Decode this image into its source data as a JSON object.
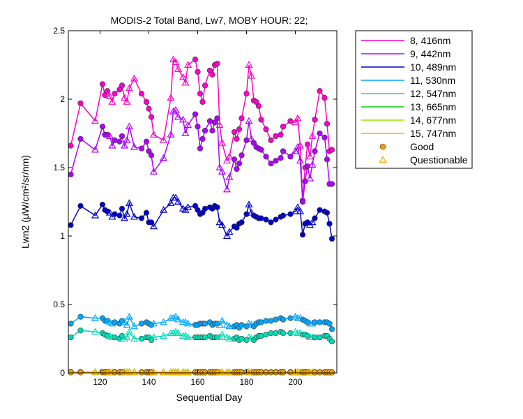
{
  "chart_data": {
    "type": "line",
    "title": "MODIS-2 Total Band, Lw7, MOBY HOUR: 22;",
    "xlabel": "Sequential Day",
    "ylabel": "Lwn2 (μW/cm²/sr/nm)",
    "xlim": [
      107,
      217
    ],
    "ylim": [
      0,
      2.5
    ],
    "xticks": [
      "120",
      "140",
      "160",
      "180",
      "200"
    ],
    "yticks": [
      "0",
      "0.5",
      "1",
      "1.5",
      "2",
      "2.5"
    ],
    "x": [
      108,
      112,
      118,
      121,
      122,
      123,
      124,
      125,
      126,
      128,
      129,
      130,
      131,
      132,
      134,
      137,
      139,
      140,
      141,
      142,
      146,
      149,
      150,
      151,
      152,
      154,
      155,
      156,
      159,
      160,
      161,
      162,
      163,
      165,
      166,
      167,
      168,
      169,
      170,
      172,
      173,
      175,
      176,
      177,
      178,
      180,
      181,
      182,
      183,
      184,
      185,
      186,
      188,
      190,
      192,
      194,
      195,
      198,
      200,
      201,
      202,
      203,
      204,
      205,
      206,
      207,
      208,
      210,
      212,
      213,
      214,
      215
    ],
    "series": [
      {
        "name": "8, 416nm",
        "color": "#ff00cc",
        "values": [
          1.66,
          1.97,
          1.84,
          2.11,
          2.03,
          2.06,
          2.02,
          1.98,
          2.04,
          2.07,
          2.1,
          2.01,
          1.98,
          2.08,
          2.15,
          2.04,
          1.98,
          1.93,
          1.87,
          1.74,
          1.7,
          2.01,
          2.29,
          2.27,
          2.22,
          2.16,
          2.12,
          2.25,
          2.29,
          2.2,
          2.04,
          1.98,
          2.1,
          2.21,
          2.18,
          2.25,
          2.26,
          1.81,
          1.68,
          1.55,
          1.58,
          1.76,
          1.71,
          1.78,
          1.86,
          2.04,
          2.25,
          2.17,
          1.99,
          1.98,
          1.95,
          1.85,
          1.78,
          1.7,
          1.73,
          1.74,
          1.8,
          1.84,
          1.83,
          1.86,
          1.66,
          1.26,
          1.5,
          1.67,
          1.58,
          1.73,
          1.85,
          2.06,
          2.01,
          1.82,
          1.62,
          1.63
        ]
      },
      {
        "name": "9, 442nm",
        "color": "#b000ff",
        "values": [
          1.45,
          1.71,
          1.63,
          1.8,
          1.74,
          1.74,
          1.73,
          1.66,
          1.7,
          1.69,
          1.73,
          1.66,
          1.7,
          1.8,
          1.65,
          1.64,
          1.69,
          1.62,
          1.59,
          1.47,
          1.57,
          1.74,
          1.91,
          1.92,
          1.87,
          1.85,
          1.75,
          1.81,
          1.89,
          1.8,
          1.64,
          1.71,
          1.77,
          1.84,
          1.77,
          1.83,
          1.86,
          1.5,
          1.47,
          1.34,
          1.43,
          1.56,
          1.49,
          1.53,
          1.59,
          1.7,
          1.84,
          1.71,
          1.68,
          1.65,
          1.64,
          1.63,
          1.58,
          1.53,
          1.55,
          1.57,
          1.62,
          1.58,
          1.62,
          1.65,
          1.55,
          1.25,
          1.4,
          1.51,
          1.42,
          1.52,
          1.62,
          1.75,
          1.72,
          1.56,
          1.38,
          1.38
        ]
      },
      {
        "name": "10, 489nm",
        "color": "#0000cc",
        "values": [
          1.08,
          1.22,
          1.15,
          1.23,
          1.19,
          1.18,
          1.17,
          1.14,
          1.16,
          1.15,
          1.2,
          1.13,
          1.16,
          1.24,
          1.14,
          1.13,
          1.17,
          1.1,
          1.1,
          1.07,
          1.19,
          1.24,
          1.28,
          1.28,
          1.25,
          1.2,
          1.19,
          1.21,
          1.22,
          1.19,
          1.16,
          1.17,
          1.2,
          1.21,
          1.2,
          1.22,
          1.21,
          1.1,
          1.08,
          1.0,
          1.03,
          1.07,
          1.06,
          1.09,
          1.1,
          1.16,
          1.23,
          1.17,
          1.15,
          1.14,
          1.13,
          1.13,
          1.12,
          1.1,
          1.12,
          1.14,
          1.15,
          1.16,
          1.18,
          1.21,
          1.18,
          1.01,
          1.09,
          1.1,
          1.08,
          1.1,
          1.13,
          1.19,
          1.18,
          1.17,
          1.09,
          0.98
        ]
      },
      {
        "name": "11, 530nm",
        "color": "#00a6ff",
        "values": [
          0.36,
          0.41,
          0.4,
          0.4,
          0.38,
          0.38,
          0.37,
          0.36,
          0.37,
          0.36,
          0.38,
          0.37,
          0.35,
          0.41,
          0.34,
          0.36,
          0.37,
          0.36,
          0.35,
          0.36,
          0.37,
          0.4,
          0.4,
          0.41,
          0.39,
          0.37,
          0.37,
          0.36,
          0.35,
          0.35,
          0.36,
          0.36,
          0.36,
          0.37,
          0.35,
          0.36,
          0.36,
          0.35,
          0.38,
          0.35,
          0.34,
          0.34,
          0.35,
          0.33,
          0.35,
          0.34,
          0.36,
          0.35,
          0.34,
          0.36,
          0.37,
          0.37,
          0.38,
          0.38,
          0.39,
          0.4,
          0.39,
          0.4,
          0.41,
          0.4,
          0.4,
          0.39,
          0.38,
          0.37,
          0.36,
          0.36,
          0.37,
          0.37,
          0.37,
          0.37,
          0.36,
          0.32
        ]
      },
      {
        "name": "12, 547nm",
        "color": "#00dcb4",
        "values": [
          0.26,
          0.31,
          0.3,
          0.29,
          0.28,
          0.27,
          0.27,
          0.26,
          0.26,
          0.25,
          0.27,
          0.25,
          0.26,
          0.3,
          0.25,
          0.25,
          0.26,
          0.26,
          0.24,
          0.26,
          0.27,
          0.29,
          0.29,
          0.3,
          0.29,
          0.27,
          0.27,
          0.26,
          0.26,
          0.26,
          0.26,
          0.26,
          0.26,
          0.27,
          0.26,
          0.26,
          0.26,
          0.26,
          0.28,
          0.26,
          0.25,
          0.25,
          0.26,
          0.24,
          0.25,
          0.24,
          0.26,
          0.25,
          0.24,
          0.26,
          0.27,
          0.27,
          0.28,
          0.29,
          0.29,
          0.3,
          0.29,
          0.29,
          0.3,
          0.29,
          0.29,
          0.28,
          0.28,
          0.27,
          0.26,
          0.26,
          0.26,
          0.26,
          0.27,
          0.27,
          0.25,
          0.23
        ]
      },
      {
        "name": "13, 665nm",
        "color": "#00cc00",
        "values": [
          0.006,
          0.006,
          0.006,
          0.005,
          0.005,
          0.005,
          0.006,
          0.005,
          0.006,
          0.005,
          0.006,
          0.005,
          0.005,
          0.007,
          0.005,
          0.005,
          0.005,
          0.005,
          0.005,
          0.005,
          0.005,
          0.006,
          0.006,
          0.006,
          0.006,
          0.005,
          0.005,
          0.005,
          0.005,
          0.005,
          0.005,
          0.005,
          0.005,
          0.005,
          0.005,
          0.005,
          0.005,
          0.005,
          0.006,
          0.005,
          0.005,
          0.005,
          0.005,
          0.005,
          0.005,
          0.005,
          0.005,
          0.005,
          0.005,
          0.005,
          0.005,
          0.005,
          0.005,
          0.005,
          0.006,
          0.006,
          0.006,
          0.006,
          0.006,
          0.006,
          0.006,
          0.005,
          0.005,
          0.005,
          0.005,
          0.005,
          0.005,
          0.005,
          0.005,
          0.005,
          0.005,
          0.005
        ]
      },
      {
        "name": "14, 677nm",
        "color": "#99e600",
        "values": [
          0.005,
          0.005,
          0.005,
          0.005,
          0.005,
          0.005,
          0.005,
          0.004,
          0.005,
          0.004,
          0.005,
          0.004,
          0.004,
          0.006,
          0.004,
          0.004,
          0.004,
          0.004,
          0.004,
          0.004,
          0.004,
          0.005,
          0.005,
          0.005,
          0.005,
          0.004,
          0.004,
          0.004,
          0.004,
          0.004,
          0.004,
          0.004,
          0.004,
          0.004,
          0.004,
          0.004,
          0.004,
          0.004,
          0.005,
          0.004,
          0.004,
          0.004,
          0.004,
          0.004,
          0.004,
          0.004,
          0.004,
          0.004,
          0.004,
          0.004,
          0.004,
          0.004,
          0.004,
          0.004,
          0.005,
          0.005,
          0.005,
          0.005,
          0.005,
          0.005,
          0.005,
          0.004,
          0.004,
          0.004,
          0.004,
          0.004,
          0.004,
          0.004,
          0.004,
          0.004,
          0.004,
          0.004
        ]
      },
      {
        "name": "15, 747nm",
        "color": "#ffaa00",
        "values": [
          0.003,
          0.003,
          0.003,
          0.003,
          0.003,
          0.003,
          0.003,
          0.003,
          0.003,
          0.003,
          0.003,
          0.003,
          0.003,
          0.004,
          0.003,
          0.003,
          0.003,
          0.003,
          0.003,
          0.003,
          0.003,
          0.003,
          0.003,
          0.003,
          0.003,
          0.003,
          0.003,
          0.003,
          0.003,
          0.003,
          0.003,
          0.003,
          0.003,
          0.003,
          0.003,
          0.003,
          0.003,
          0.003,
          0.003,
          0.003,
          0.003,
          0.003,
          0.003,
          0.003,
          0.003,
          0.003,
          0.003,
          0.003,
          0.003,
          0.003,
          0.003,
          0.003,
          0.003,
          0.003,
          0.003,
          0.003,
          0.003,
          0.003,
          0.003,
          0.003,
          0.003,
          0.003,
          0.003,
          0.003,
          0.003,
          0.003,
          0.003,
          0.003,
          0.003,
          0.003,
          0.003,
          0.003
        ]
      }
    ],
    "quality": [
      "G",
      "G",
      "Q",
      "G",
      "G",
      "G",
      "Q",
      "Q",
      "G",
      "G",
      "G",
      "Q",
      "Q",
      "Q",
      "Q",
      "G",
      "G",
      "G",
      "G",
      "Q",
      "Q",
      "Q",
      "Q",
      "Q",
      "Q",
      "Q",
      "Q",
      "Q",
      "G",
      "G",
      "G",
      "G",
      "G",
      "G",
      "G",
      "G",
      "G",
      "Q",
      "Q",
      "Q",
      "Q",
      "G",
      "G",
      "G",
      "G",
      "G",
      "Q",
      "Q",
      "G",
      "G",
      "G",
      "G",
      "G",
      "G",
      "G",
      "G",
      "G",
      "G",
      "Q",
      "Q",
      "Q",
      "G",
      "G",
      "G",
      "Q",
      "Q",
      "G",
      "G",
      "G",
      "G",
      "G",
      "G"
    ],
    "marker_legend": [
      {
        "label": "Good",
        "marker": "circle",
        "color": "#ff9900"
      },
      {
        "label": "Questionable",
        "marker": "triangle",
        "color": "#ffaa00"
      }
    ],
    "legend_position": "outside-top-right",
    "grid": false
  }
}
